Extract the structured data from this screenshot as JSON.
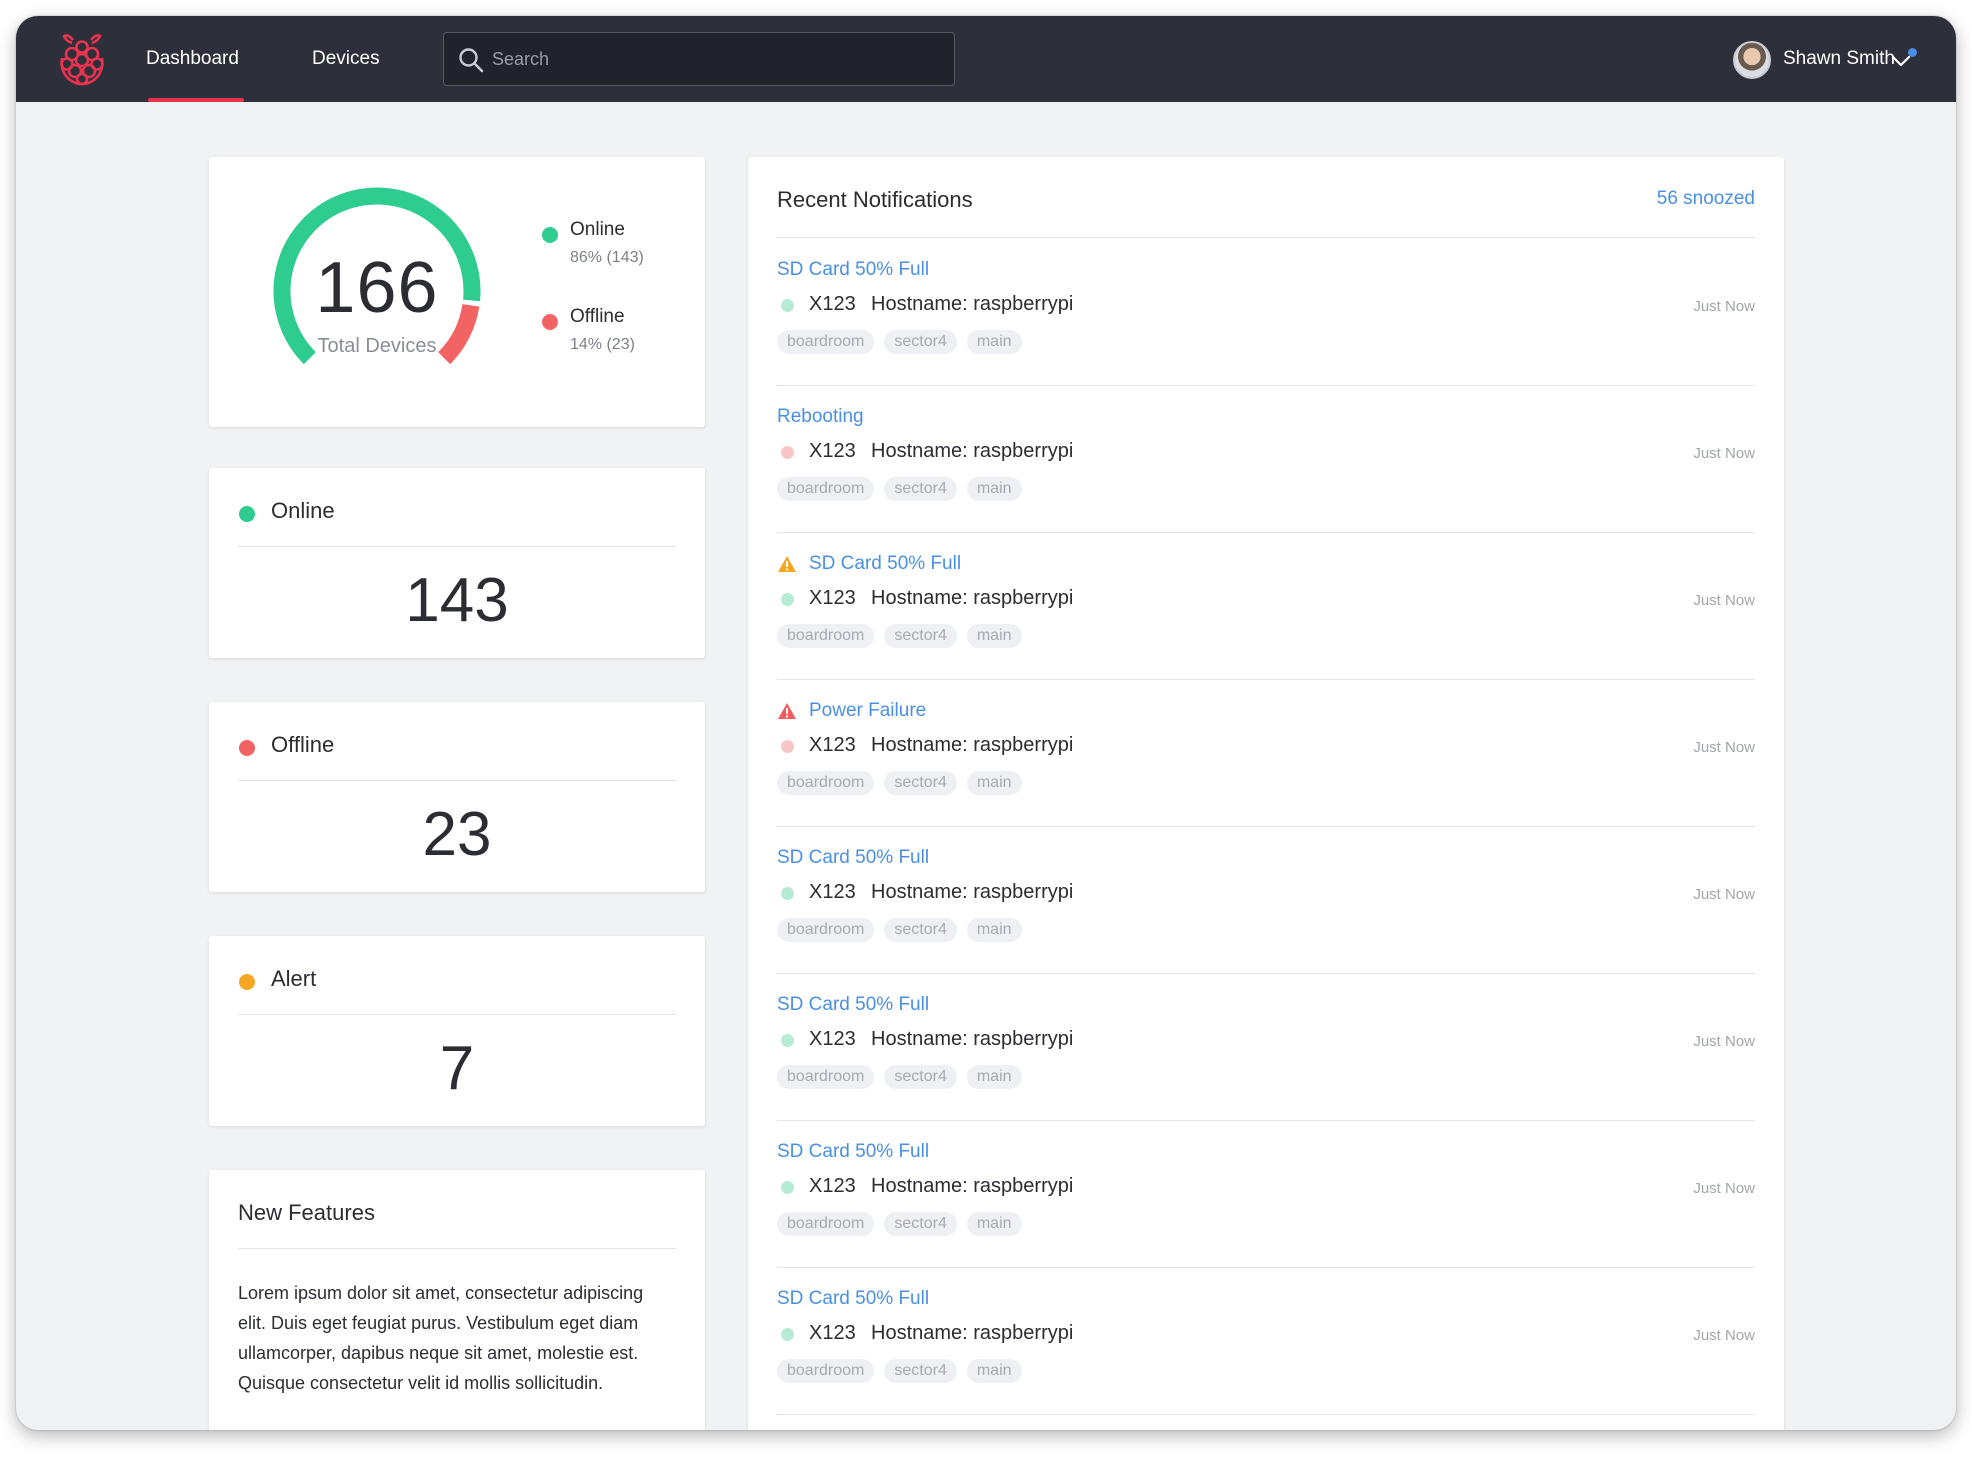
{
  "nav": {
    "items": [
      {
        "label": "Dashboard",
        "active": true
      },
      {
        "label": "Devices",
        "active": false
      }
    ]
  },
  "search": {
    "placeholder": "Search",
    "value": ""
  },
  "user": {
    "name": "Shawn Smith"
  },
  "colors": {
    "topbar": "#2d2f3b",
    "brand": "#e8334f",
    "online": "#2ecc8f",
    "offline": "#f26464",
    "alert": "#f5a623",
    "link": "#4a90e2"
  },
  "gauge": {
    "total": "166",
    "label": "Total Devices",
    "online_fraction": 0.86,
    "offline_fraction": 0.14,
    "legend": [
      {
        "name": "Online",
        "detail": "86% (143)",
        "color": "#2ecc8f"
      },
      {
        "name": "Offline",
        "detail": "14% (23)",
        "color": "#f26464"
      }
    ]
  },
  "stats": {
    "online": {
      "title": "Online",
      "value": "143",
      "color": "#2ecc8f"
    },
    "offline": {
      "title": "Offline",
      "value": "23",
      "color": "#f26464"
    },
    "alert": {
      "title": "Alert",
      "value": "7",
      "color": "#f5a623"
    }
  },
  "features": {
    "title": "New Features",
    "body": "Lorem ipsum dolor sit amet, consectetur adipiscing elit. Duis eget feugiat purus. Vestibulum eget diam ullamcorper, dapibus neque sit amet, molestie est. Quisque consectetur velit id mollis sollicitudin."
  },
  "notifications": {
    "title": "Recent Notifications",
    "snoozed": "56 snoozed",
    "items": [
      {
        "title": "SD Card 50% Full",
        "icon": "",
        "status_color": "#b6ebd6",
        "device": "X123",
        "host": "Hostname: raspberrypi",
        "time": "Just Now",
        "tags": [
          "boardroom",
          "sector4",
          "main"
        ]
      },
      {
        "title": "Rebooting",
        "icon": "",
        "status_color": "#f8c6c6",
        "device": "X123",
        "host": "Hostname: raspberrypi",
        "time": "Just Now",
        "tags": [
          "boardroom",
          "sector4",
          "main"
        ]
      },
      {
        "title": "SD Card 50% Full",
        "icon": "warning-icon",
        "icon_color": "#f5a623",
        "status_color": "#b6ebd6",
        "device": "X123",
        "host": "Hostname: raspberrypi",
        "time": "Just Now",
        "tags": [
          "boardroom",
          "sector4",
          "main"
        ]
      },
      {
        "title": "Power Failure",
        "icon": "warning-icon",
        "icon_color": "#f25c5c",
        "status_color": "#f8c6c6",
        "device": "X123",
        "host": "Hostname: raspberrypi",
        "time": "Just Now",
        "tags": [
          "boardroom",
          "sector4",
          "main"
        ]
      },
      {
        "title": "SD Card 50% Full",
        "icon": "",
        "status_color": "#b6ebd6",
        "device": "X123",
        "host": "Hostname: raspberrypi",
        "time": "Just Now",
        "tags": [
          "boardroom",
          "sector4",
          "main"
        ]
      },
      {
        "title": "SD Card 50% Full",
        "icon": "",
        "status_color": "#b6ebd6",
        "device": "X123",
        "host": "Hostname: raspberrypi",
        "time": "Just Now",
        "tags": [
          "boardroom",
          "sector4",
          "main"
        ]
      },
      {
        "title": "SD Card 50% Full",
        "icon": "",
        "status_color": "#b6ebd6",
        "device": "X123",
        "host": "Hostname: raspberrypi",
        "time": "Just Now",
        "tags": [
          "boardroom",
          "sector4",
          "main"
        ]
      },
      {
        "title": "SD Card 50% Full",
        "icon": "",
        "status_color": "#b6ebd6",
        "device": "X123",
        "host": "Hostname: raspberrypi",
        "time": "Just Now",
        "tags": [
          "boardroom",
          "sector4",
          "main"
        ]
      }
    ]
  }
}
